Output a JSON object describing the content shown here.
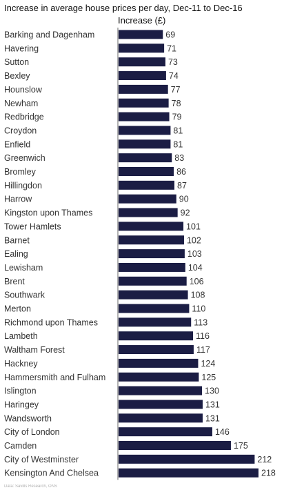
{
  "header": {
    "title": "Increase in average house prices per day, Dec-11 to Dec-16",
    "column_label": "Increase (£)"
  },
  "footer": {
    "source": "Data: Savills Research, ONS"
  },
  "colors": {
    "bar": "#1b1d44",
    "label_text": "#333333",
    "axis": "#666666"
  },
  "chart_data": {
    "type": "bar",
    "orientation": "horizontal",
    "title": "Increase in average house prices per day, Dec-11 to Dec-16",
    "xlabel": "Increase (£)",
    "ylabel": "",
    "categories": [
      "Barking and Dagenham",
      "Havering",
      "Sutton",
      "Bexley",
      "Hounslow",
      "Newham",
      "Redbridge",
      "Croydon",
      "Enfield",
      "Greenwich",
      "Bromley",
      "Hillingdon",
      "Harrow",
      "Kingston upon Thames",
      "Tower Hamlets",
      "Barnet",
      "Ealing",
      "Lewisham",
      "Brent",
      "Southwark",
      "Merton",
      "Richmond upon Thames",
      "Lambeth",
      "Waltham Forest",
      "Hackney",
      "Hammersmith and Fulham",
      "Islington",
      "Haringey",
      "Wandsworth",
      "City of London",
      "Camden",
      "City of Westminster",
      "Kensington And Chelsea"
    ],
    "values": [
      69,
      71,
      73,
      74,
      77,
      78,
      79,
      81,
      81,
      83,
      86,
      87,
      90,
      92,
      101,
      102,
      103,
      104,
      106,
      108,
      110,
      113,
      116,
      117,
      124,
      125,
      130,
      131,
      131,
      146,
      175,
      212,
      218
    ],
    "xlim": [
      0,
      218
    ],
    "grid": false
  }
}
